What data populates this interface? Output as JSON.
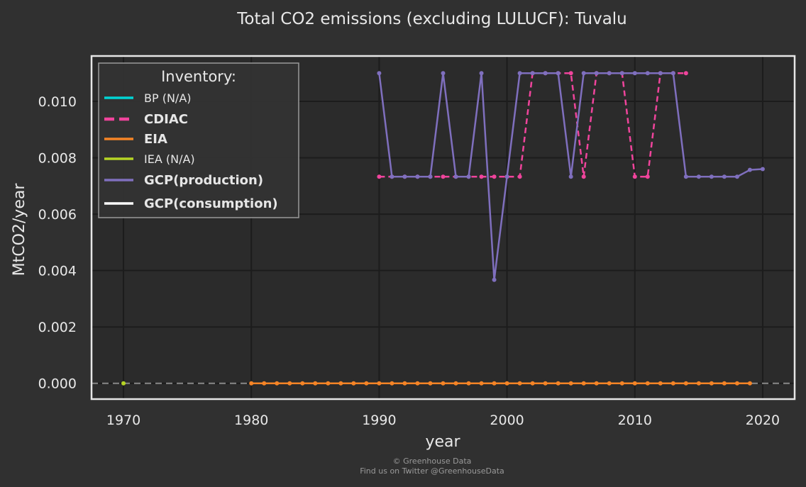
{
  "chart_data": {
    "type": "line",
    "title": "Total CO2 emissions (excluding LULUCF): Tuvalu",
    "xlabel": "year",
    "ylabel": "MtCO2/year",
    "xlim": [
      1967.5,
      2022.5
    ],
    "ylim": [
      -0.00056,
      0.01161
    ],
    "xticks": [
      1970,
      1980,
      1990,
      2000,
      2010,
      2020
    ],
    "yticks": [
      0.0,
      0.002,
      0.004,
      0.006,
      0.008,
      0.01
    ],
    "ytick_labels": [
      "0.000",
      "0.002",
      "0.004",
      "0.006",
      "0.008",
      "0.010"
    ],
    "grid": true,
    "legend": {
      "title": "Inventory:",
      "position": "top-left",
      "entries": [
        {
          "label": "BP (N/A)",
          "color": "#00d4d4",
          "style": "solid",
          "bold": false
        },
        {
          "label": "CDIAC",
          "color": "#f0449c",
          "style": "dashed",
          "bold": true
        },
        {
          "label": "EIA",
          "color": "#f58426",
          "style": "solid",
          "bold": true
        },
        {
          "label": "IEA (N/A)",
          "color": "#b6d424",
          "style": "solid",
          "bold": false
        },
        {
          "label": "GCP(production)",
          "color": "#7f6fbe",
          "style": "solid",
          "bold": true
        },
        {
          "label": "GCP(consumption)",
          "color": "#ffffff",
          "style": "solid",
          "bold": true
        }
      ]
    },
    "series": [
      {
        "name": "EIA",
        "color": "#f58426",
        "style": "solid",
        "x": [
          1980,
          1981,
          1982,
          1983,
          1984,
          1985,
          1986,
          1987,
          1988,
          1989,
          1990,
          1991,
          1992,
          1993,
          1994,
          1995,
          1996,
          1997,
          1998,
          1999,
          2000,
          2001,
          2002,
          2003,
          2004,
          2005,
          2006,
          2007,
          2008,
          2009,
          2010,
          2011,
          2012,
          2013,
          2014,
          2015,
          2016,
          2017,
          2018,
          2019
        ],
        "y": [
          0,
          0,
          0,
          0,
          0,
          0,
          0,
          0,
          0,
          0,
          0,
          0,
          0,
          0,
          0,
          0,
          0,
          0,
          0,
          0,
          0,
          0,
          0,
          0,
          0,
          0,
          0,
          0,
          0,
          0,
          0,
          0,
          0,
          0,
          0,
          0,
          0,
          0,
          0,
          0
        ]
      },
      {
        "name": "IEA (N/A)",
        "color": "#b6d424",
        "style": "solid",
        "x": [
          1970
        ],
        "y": [
          0
        ]
      },
      {
        "name": "CDIAC",
        "color": "#f0449c",
        "style": "dashed",
        "x": [
          1990,
          1991,
          1992,
          1993,
          1994,
          1995,
          1996,
          1997,
          1998,
          1999,
          2000,
          2001,
          2002,
          2003,
          2004,
          2005,
          2006,
          2007,
          2008,
          2009,
          2010,
          2011,
          2012,
          2013,
          2014
        ],
        "y": [
          0.00733,
          0.00733,
          0.00733,
          0.00733,
          0.00733,
          0.00733,
          0.00733,
          0.00733,
          0.00733,
          0.00733,
          0.00733,
          0.00733,
          0.011,
          0.011,
          0.011,
          0.011,
          0.00733,
          0.011,
          0.011,
          0.011,
          0.00733,
          0.00733,
          0.011,
          0.011,
          0.011
        ]
      },
      {
        "name": "GCP(production)",
        "color": "#7f6fbe",
        "style": "solid",
        "x": [
          1990,
          1991,
          1992,
          1993,
          1994,
          1995,
          1996,
          1997,
          1998,
          1999,
          2000,
          2001,
          2002,
          2003,
          2004,
          2005,
          2006,
          2007,
          2008,
          2009,
          2010,
          2011,
          2012,
          2013,
          2014,
          2015,
          2016,
          2017,
          2018,
          2019,
          2020
        ],
        "y": [
          0.011,
          0.00733,
          0.00733,
          0.00733,
          0.00733,
          0.011,
          0.00733,
          0.00733,
          0.011,
          0.00367,
          0.00733,
          0.011,
          0.011,
          0.011,
          0.011,
          0.00733,
          0.011,
          0.011,
          0.011,
          0.011,
          0.011,
          0.011,
          0.011,
          0.011,
          0.00733,
          0.00733,
          0.00733,
          0.00733,
          0.00733,
          0.00757,
          0.0076
        ]
      }
    ],
    "zero_line_color": "#8a8a8a"
  },
  "footer": {
    "line1": "© Greenhouse Data",
    "line2": "Find us on Twitter @GreenhouseData"
  }
}
